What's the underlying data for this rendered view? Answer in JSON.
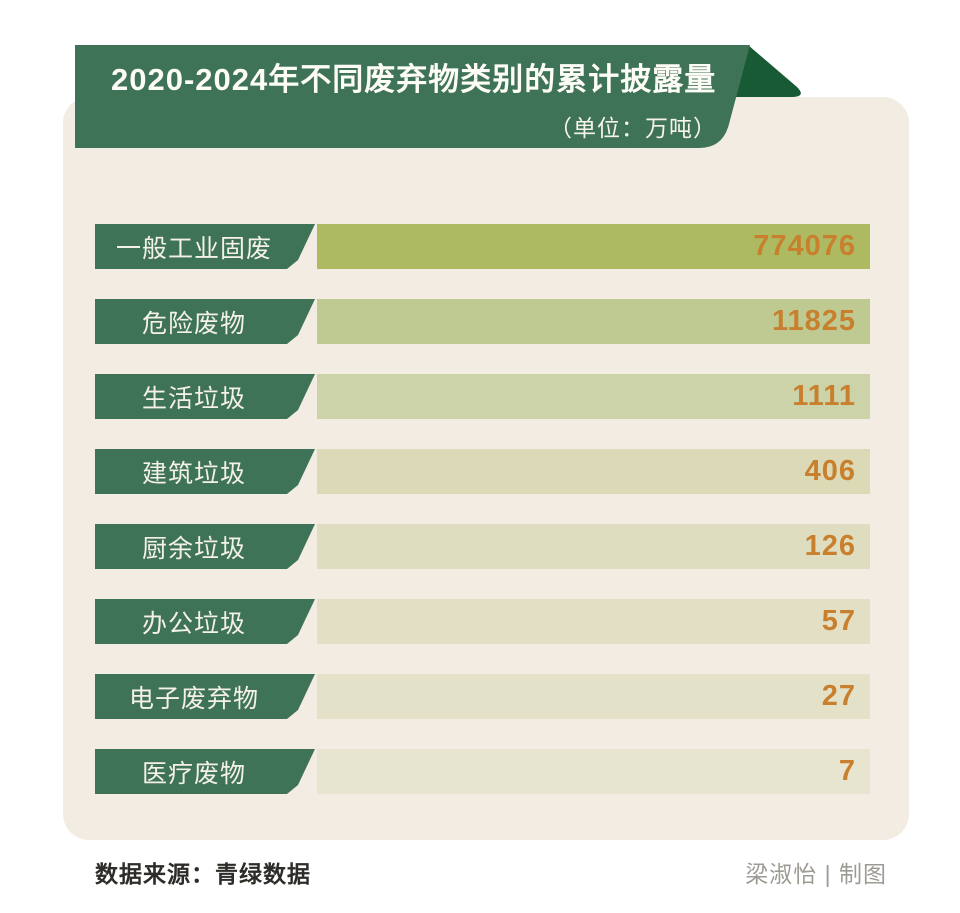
{
  "header": {
    "title": "2020-2024年不同废弃物类别的累计披露量",
    "unit": "（单位：万吨）"
  },
  "chart_data": {
    "type": "bar",
    "orientation": "horizontal",
    "title": "2020-2024年不同废弃物类别的累计披露量",
    "unit_label": "（单位：万吨）",
    "categories": [
      "一般工业固废",
      "危险废物",
      "生活垃圾",
      "建筑垃圾",
      "厨余垃圾",
      "办公垃圾",
      "电子废弃物",
      "医疗废物"
    ],
    "values": [
      774076,
      11825,
      1111,
      406,
      126,
      57,
      27,
      7
    ],
    "value_labels": [
      "774076",
      "11825",
      "1111",
      "406",
      "126",
      "57",
      "27",
      "7"
    ],
    "bar_colors": [
      "#aeba62",
      "#bfca92",
      "#ccd3a8",
      "#dcdab6",
      "#dfddbf",
      "#e2dfc4",
      "#e4e1c9",
      "#e7e4cf"
    ],
    "bar_style": "equal-length bars, color saturation fades with rank",
    "legend": "none",
    "grid": "off"
  },
  "footer": {
    "source": "数据来源：青绿数据",
    "credit": "梁淑怡 | 制图"
  },
  "colors": {
    "page_bg": "#ffffff",
    "card_bg": "#f2ece2",
    "banner_green": "#3f7357",
    "ribbon_fold_green": "#175a33",
    "tag_green": "#3f7357",
    "tag_text": "#f4f1e7",
    "title_text": "#fdfcf7",
    "value_orange": "#c8802f",
    "source_text": "#2e2c28",
    "credit_text": "#9e9b94"
  }
}
